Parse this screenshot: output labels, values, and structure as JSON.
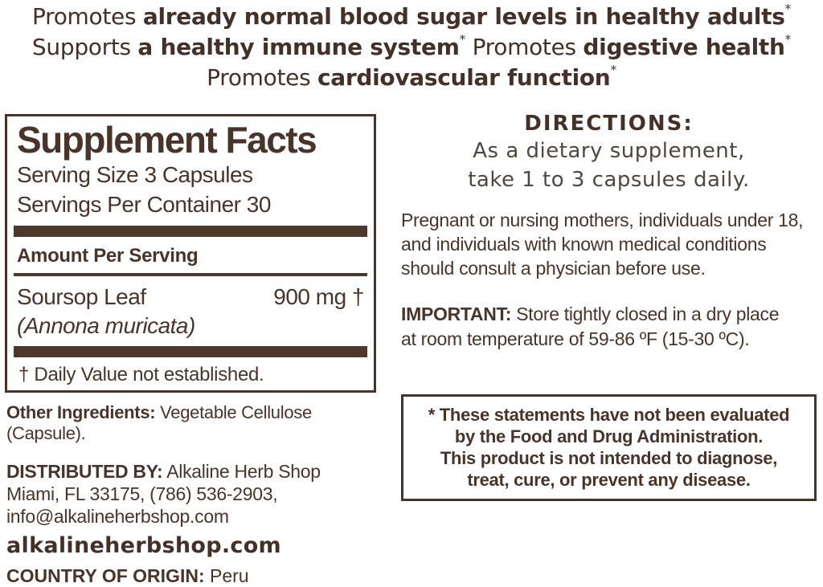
{
  "colors": {
    "text_brown": "#4A3429",
    "bar_brown": "#4E382B",
    "background": "#FFFFFF"
  },
  "claims": {
    "l1_regular": "Promotes ",
    "l1_bold": "already normal blood sugar levels in healthy adults",
    "l1_sup": "*",
    "l2_regular1": "Supports ",
    "l2_bold1": "a healthy immune system",
    "l2_sup1": "*",
    "l2_regular2": " Promotes ",
    "l2_bold2": "digestive health",
    "l2_sup2": "*",
    "l3_regular": "Promotes ",
    "l3_bold": "cardiovascular function",
    "l3_sup": "*"
  },
  "supplement_facts": {
    "title": "Supplement Facts",
    "serving_size": "Serving Size 3 Capsules",
    "servings_per_container": "Servings Per Container 30",
    "amount_per_serving": "Amount Per Serving",
    "ingredient": {
      "name": "Soursop Leaf",
      "latin": "(Annona muricata)",
      "amount": "900 mg †"
    },
    "footnote": "† Daily Value not established."
  },
  "other_ingredients": {
    "label": "Other Ingredients:",
    "value": " Vegetable Cellulose (Capsule)."
  },
  "distributed_by": {
    "label": "DISTRIBUTED BY:",
    "value": " Alkaline Herb Shop",
    "line2": "Miami, FL 33175, (786) 536-2903,",
    "line3": "info@alkalineherbshop.com"
  },
  "website": "alkalineherbshop.com",
  "country_of_origin": {
    "label": "COUNTRY OF ORIGIN:",
    "value": " Peru"
  },
  "directions": {
    "heading": "DIRECTIONS:",
    "line1": "As a dietary supplement,",
    "line2": "take 1 to 3 capsules daily."
  },
  "warning": "Pregnant or nursing mothers, individuals under 18, and individuals with known medical conditions should consult a physician before use.",
  "important": {
    "label": "IMPORTANT:",
    "text": " Store tightly closed in a dry place at room temperature of 59-86 ºF (15-30 ºC)."
  },
  "disclaimer": {
    "lines": [
      "* These statements have not been evaluated",
      "by the Food and Drug Administration.",
      "This product is not intended to diagnose,",
      "treat, cure, or prevent any disease."
    ]
  }
}
